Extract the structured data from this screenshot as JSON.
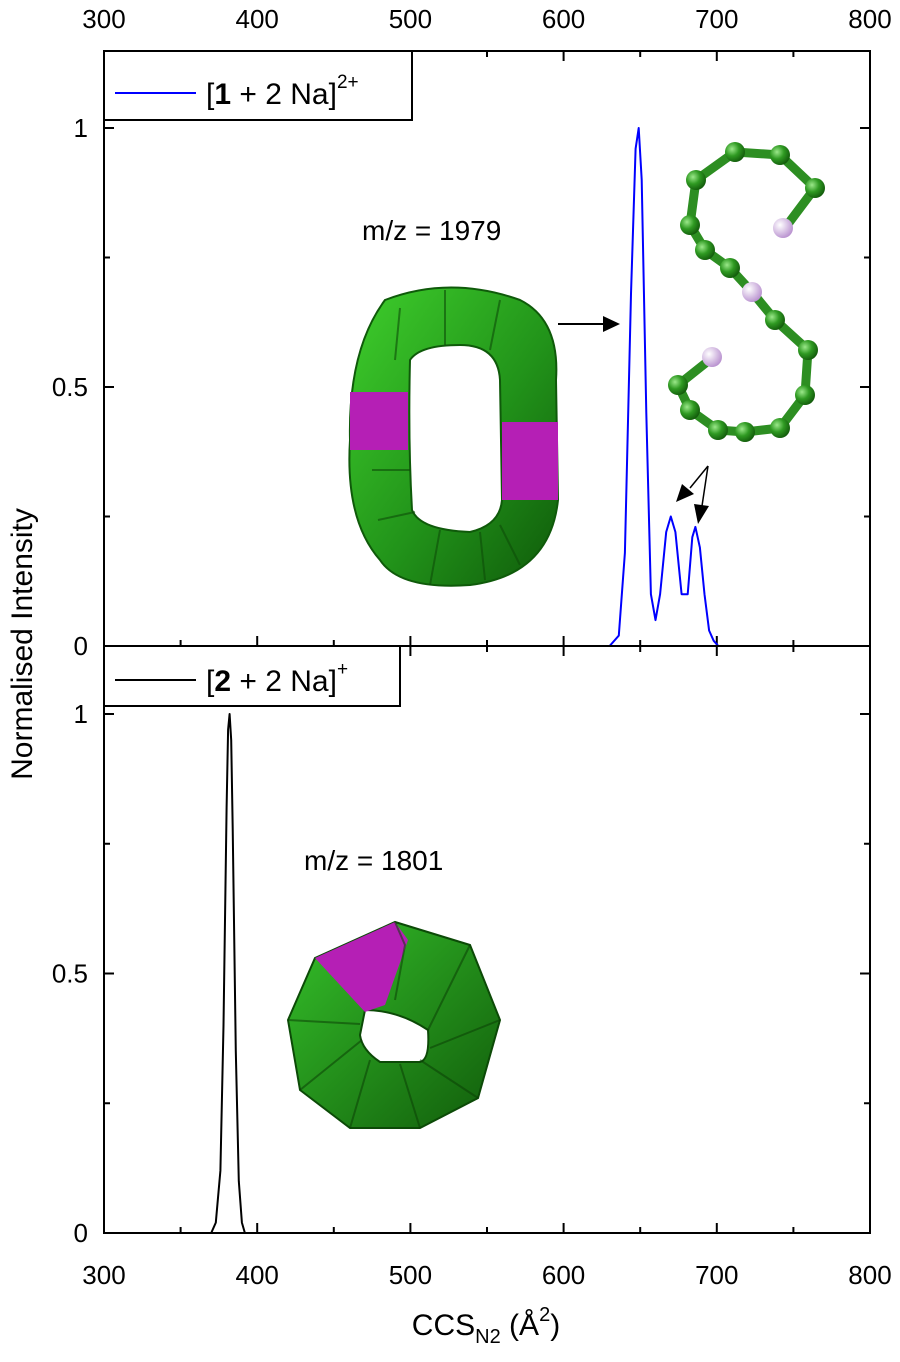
{
  "chart_data": [
    {
      "type": "line",
      "panel": "top",
      "legend": {
        "name": "[1 + 2 Na]",
        "bold_token": "1",
        "superscript": "2+",
        "color": "#0000ff",
        "placement": "top-left"
      },
      "annotation": "m/z = 1979",
      "xlim": [
        300,
        800
      ],
      "ylim": [
        0,
        1.1
      ],
      "xticks": [
        300,
        400,
        500,
        600,
        700,
        800
      ],
      "yticks": [
        0,
        0.5,
        1
      ],
      "ytick_labels": [
        "0",
        "0.5",
        "1"
      ],
      "series": [
        {
          "color": "#0000ff",
          "x": [
            300,
            630,
            636,
            640,
            644,
            647,
            649,
            651,
            654,
            657,
            660,
            663,
            667,
            670,
            673,
            677,
            681,
            684,
            686,
            689,
            692,
            695,
            698,
            701,
            800
          ],
          "values": [
            0,
            0,
            0.02,
            0.18,
            0.68,
            0.96,
            1.0,
            0.9,
            0.45,
            0.1,
            0.05,
            0.1,
            0.22,
            0.25,
            0.22,
            0.1,
            0.1,
            0.21,
            0.23,
            0.19,
            0.1,
            0.03,
            0.01,
            0,
            0
          ]
        }
      ]
    },
    {
      "type": "line",
      "panel": "bottom",
      "legend": {
        "name": "[2 + 2 Na]",
        "bold_token": "2",
        "superscript": "+",
        "color": "#000000",
        "placement": "top-left"
      },
      "annotation": "m/z = 1801",
      "xlim": [
        300,
        800
      ],
      "ylim": [
        0,
        1.1
      ],
      "xticks": [
        300,
        400,
        500,
        600,
        700,
        800
      ],
      "yticks": [
        0,
        0.5,
        1
      ],
      "ytick_labels": [
        "0",
        "0.5",
        "1"
      ],
      "series": [
        {
          "color": "#000000",
          "x": [
            300,
            370,
            373,
            376,
            378,
            380,
            381,
            382,
            383,
            384,
            386,
            388,
            390,
            392,
            800
          ],
          "values": [
            0,
            0,
            0.02,
            0.12,
            0.4,
            0.82,
            0.97,
            1.0,
            0.95,
            0.78,
            0.35,
            0.1,
            0.02,
            0,
            0
          ]
        }
      ]
    }
  ],
  "axes": {
    "x_tick_labels": [
      "300",
      "400",
      "500",
      "600",
      "700",
      "800"
    ],
    "ylabel": "Normalised Intensity",
    "xlabel_main": "CCS",
    "xlabel_sub": "N2",
    "xlabel_unit": "(Å",
    "xlabel_unit_sup": "2",
    "xlabel_unit_close": ")"
  },
  "colors": {
    "green": "#2d9a1f",
    "green_dark": "#156b0c",
    "magenta": "#c020c0",
    "sodium": "#d9b8e8"
  },
  "icons": [
    "cyclic-oligomer-ring-model",
    "linear-chain-ball-stick-model",
    "seven-membered-ring-model"
  ]
}
